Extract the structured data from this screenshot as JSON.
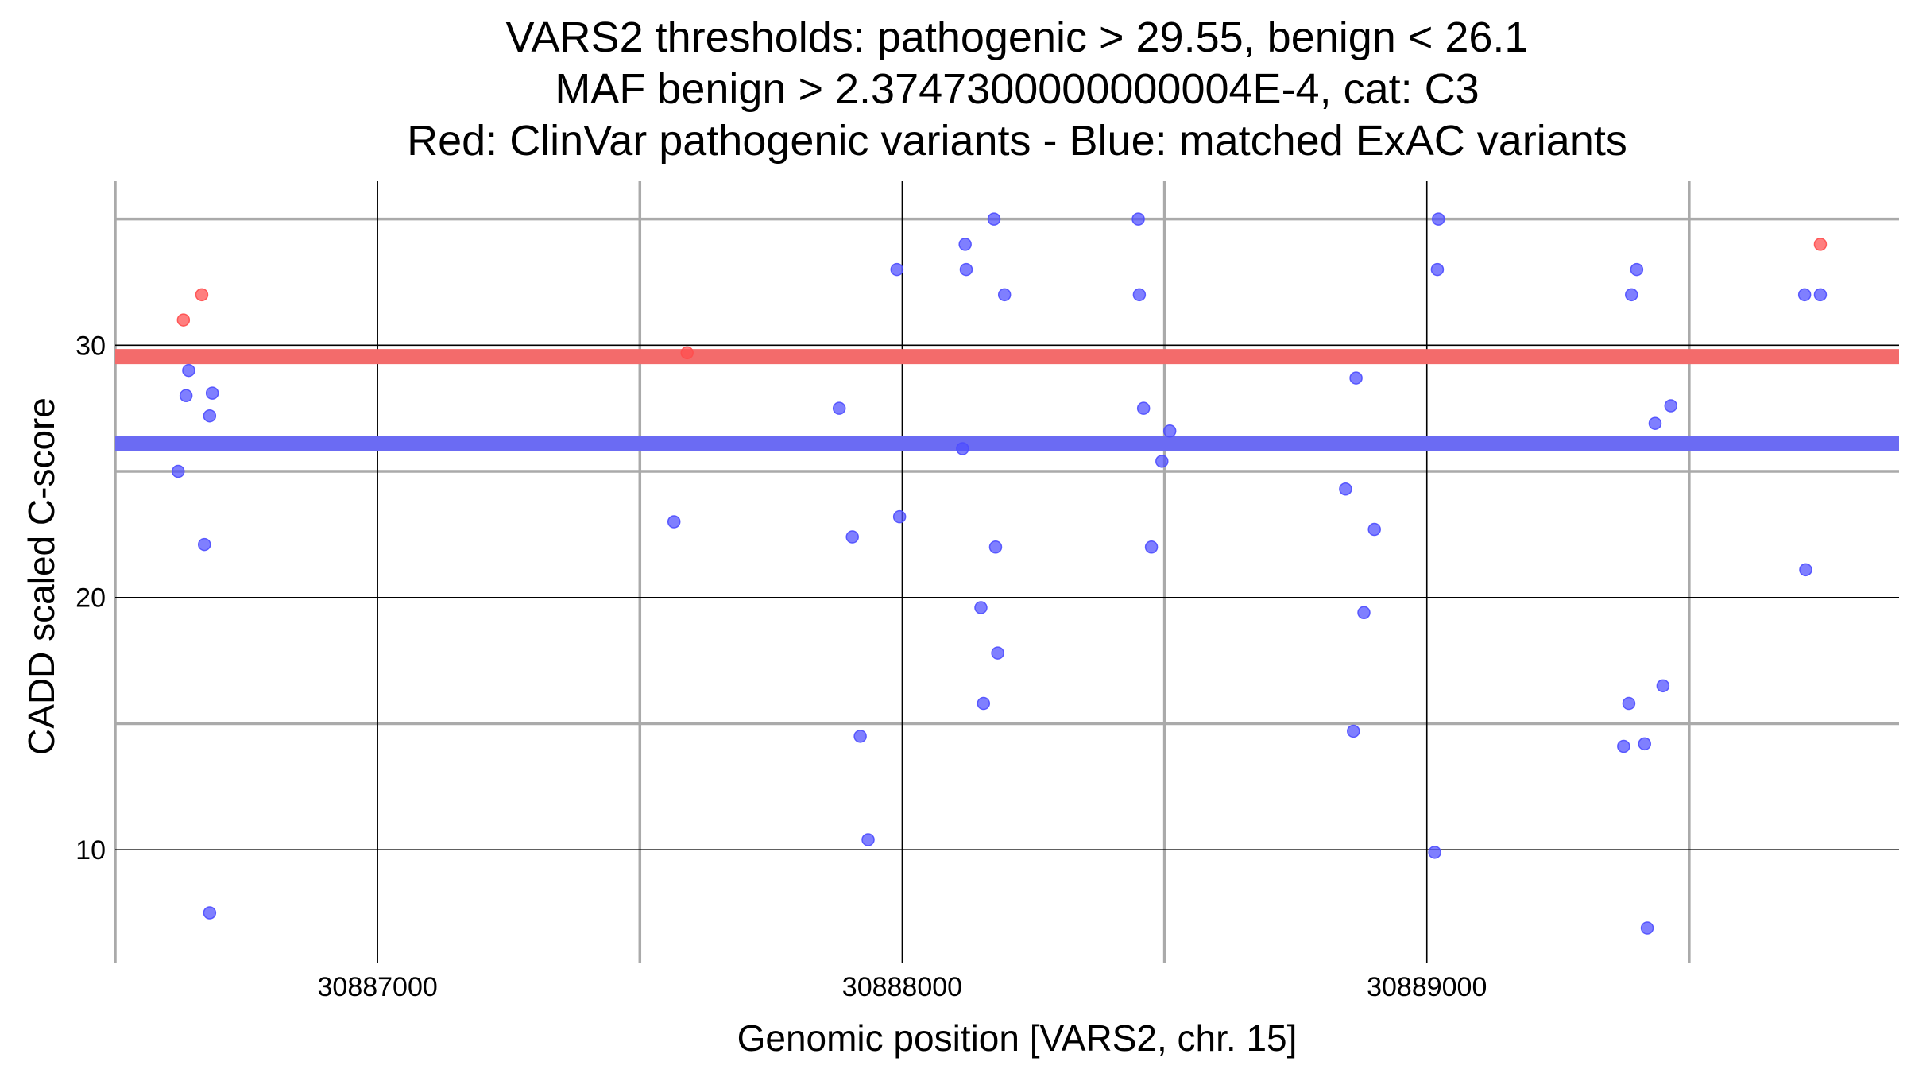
{
  "chart_data": {
    "type": "scatter",
    "title_lines": [
      "VARS2 thresholds: pathogenic > 29.55, benign < 26.1",
      "MAF benign > 2.3747300000000004E-4, cat: C3",
      "Red: ClinVar pathogenic variants - Blue: matched ExAC variants"
    ],
    "xlabel": "Genomic position [VARS2, chr. 15]",
    "ylabel": "CADD scaled C-score",
    "xlim": [
      30886500,
      30889900
    ],
    "ylim": [
      5.5,
      36.5
    ],
    "x_major_ticks": [
      30887000,
      30888000,
      30889000
    ],
    "x_minor_ticks": [
      30886500,
      30887500,
      30888500,
      30889500
    ],
    "y_major_ticks": [
      10,
      20,
      30
    ],
    "y_minor_ticks": [
      15,
      25,
      35
    ],
    "x_tick_labels": [
      "30887000",
      "30888000",
      "30889000"
    ],
    "y_tick_labels": [
      "10",
      "20",
      "30"
    ],
    "thresholds": [
      {
        "name": "pathogenic",
        "value": 29.55,
        "color": "#f36b6b"
      },
      {
        "name": "benign",
        "value": 26.1,
        "color": "#6b6bf3"
      }
    ],
    "colors": {
      "pathogenic": "#ff4d4d",
      "benign": "#4d4dff",
      "grid_major": "#000000",
      "grid_minor": "#aaaaaa"
    },
    "series": [
      {
        "name": "ClinVar pathogenic variants",
        "color": "#ff4d4d",
        "points": [
          [
            30886630,
            31
          ],
          [
            30886665,
            32
          ],
          [
            30887590,
            29.7
          ],
          [
            30889750,
            34
          ]
        ]
      },
      {
        "name": "matched ExAC variants",
        "color": "#4d4dff",
        "points": [
          [
            30886620,
            25
          ],
          [
            30886635,
            28
          ],
          [
            30886640,
            29
          ],
          [
            30886670,
            22.1
          ],
          [
            30886680,
            27.2
          ],
          [
            30886685,
            28.1
          ],
          [
            30886680,
            7.5
          ],
          [
            30887565,
            23
          ],
          [
            30887880,
            27.5
          ],
          [
            30887905,
            22.4
          ],
          [
            30887920,
            14.5
          ],
          [
            30887935,
            10.4
          ],
          [
            30887990,
            33
          ],
          [
            30887995,
            23.2
          ],
          [
            30888115,
            25.9
          ],
          [
            30888120,
            34
          ],
          [
            30888122,
            33
          ],
          [
            30888150,
            19.6
          ],
          [
            30888155,
            15.8
          ],
          [
            30888175,
            35
          ],
          [
            30888178,
            22
          ],
          [
            30888182,
            17.8
          ],
          [
            30888195,
            32
          ],
          [
            30888450,
            35
          ],
          [
            30888452,
            32
          ],
          [
            30888460,
            27.5
          ],
          [
            30888475,
            22
          ],
          [
            30888495,
            25.4
          ],
          [
            30888510,
            26.6
          ],
          [
            30888845,
            24.3
          ],
          [
            30888860,
            14.7
          ],
          [
            30888865,
            28.7
          ],
          [
            30888880,
            19.4
          ],
          [
            30888900,
            22.7
          ],
          [
            30889015,
            9.9
          ],
          [
            30889020,
            33
          ],
          [
            30889022,
            35
          ],
          [
            30889375,
            14.1
          ],
          [
            30889385,
            15.8
          ],
          [
            30889390,
            32
          ],
          [
            30889400,
            33
          ],
          [
            30889415,
            14.2
          ],
          [
            30889420,
            6.9
          ],
          [
            30889435,
            26.9
          ],
          [
            30889450,
            16.5
          ],
          [
            30889465,
            27.6
          ],
          [
            30889720,
            32
          ],
          [
            30889722,
            21.1
          ],
          [
            30889750,
            32
          ]
        ]
      }
    ]
  }
}
